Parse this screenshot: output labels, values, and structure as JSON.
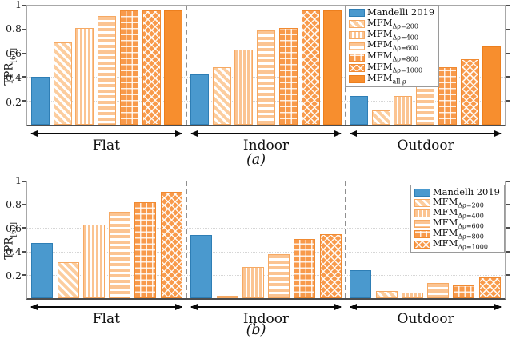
{
  "colors": {
    "mandelli_blue": "#4a99ce",
    "mfm_solid_orange": "#f78e2e",
    "mfm_light_orange": "#fbc492",
    "mfm_hatch_orange": "#f89a4b",
    "separator_gray": "#8f8f8f",
    "axis_gray": "#a8a8a8",
    "axis_bottom_dark": "#4d4d4d"
  },
  "chart_data": [
    {
      "id": "a",
      "type": "bar",
      "title": "(a)",
      "ylabel": "TPR",
      "ylabel_sub": "[60]",
      "ylim": [
        0,
        1
      ],
      "yticks": [
        0.2,
        0.4,
        0.6,
        0.8,
        1
      ],
      "grid": true,
      "legend_position": "top, left edge of Outdoor group",
      "categories": [
        "Flat",
        "Indoor",
        "Outdoor"
      ],
      "series": [
        {
          "name": "Mandelli 2019",
          "name_sub": "",
          "pattern": "solid-blue",
          "values": [
            0.4,
            0.42,
            0.24
          ]
        },
        {
          "name": "MFM",
          "name_sub": "Δρ=200",
          "pattern": "diag-stripe",
          "values": [
            0.69,
            0.48,
            0.12
          ]
        },
        {
          "name": "MFM",
          "name_sub": "Δρ=400",
          "pattern": "vert-stripe",
          "values": [
            0.81,
            0.63,
            0.24
          ]
        },
        {
          "name": "MFM",
          "name_sub": "Δρ=600",
          "pattern": "horiz-stripe",
          "values": [
            0.91,
            0.79,
            0.4
          ]
        },
        {
          "name": "MFM",
          "name_sub": "Δρ=800",
          "pattern": "grid-hatch",
          "values": [
            0.96,
            0.81,
            0.48
          ]
        },
        {
          "name": "MFM",
          "name_sub": "Δρ=1000",
          "pattern": "cross-hatch",
          "values": [
            0.96,
            0.96,
            0.55
          ]
        },
        {
          "name": "MFM",
          "name_sub": "all ρ",
          "pattern": "solid-orange",
          "values": [
            0.96,
            0.96,
            0.66
          ]
        }
      ]
    },
    {
      "id": "b",
      "type": "bar",
      "title": "(b)",
      "ylabel": "TPR",
      "ylabel_sub": "[60]",
      "ylim": [
        0,
        1
      ],
      "yticks": [
        0.2,
        0.4,
        0.6,
        0.8,
        1
      ],
      "grid": true,
      "legend_position": "top-right corner",
      "categories": [
        "Flat",
        "Indoor",
        "Outdoor"
      ],
      "series": [
        {
          "name": "Mandelli 2019",
          "name_sub": "",
          "pattern": "solid-blue",
          "values": [
            0.47,
            0.54,
            0.24
          ]
        },
        {
          "name": "MFM",
          "name_sub": "Δρ=200",
          "pattern": "diag-stripe",
          "values": [
            0.31,
            0.02,
            0.06
          ]
        },
        {
          "name": "MFM",
          "name_sub": "Δρ=400",
          "pattern": "vert-stripe",
          "values": [
            0.63,
            0.27,
            0.05
          ]
        },
        {
          "name": "MFM",
          "name_sub": "Δρ=600",
          "pattern": "horiz-stripe",
          "values": [
            0.74,
            0.38,
            0.13
          ]
        },
        {
          "name": "MFM",
          "name_sub": "Δρ=800",
          "pattern": "grid-hatch",
          "values": [
            0.82,
            0.51,
            0.11
          ]
        },
        {
          "name": "MFM",
          "name_sub": "Δρ=1000",
          "pattern": "cross-hatch",
          "values": [
            0.91,
            0.55,
            0.18
          ]
        }
      ]
    }
  ]
}
